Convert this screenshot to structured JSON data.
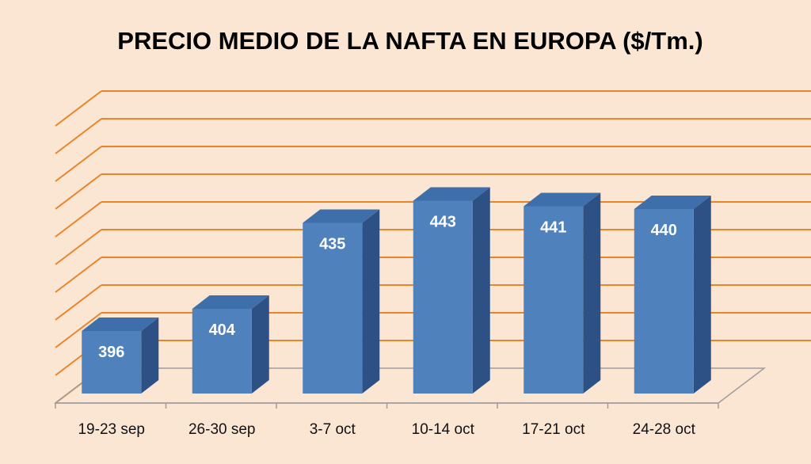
{
  "chart_data": {
    "type": "bar",
    "title": "PRECIO MEDIO DE LA NAFTA EN EUROPA ($/Tm.)",
    "categories": [
      "19-23 sep",
      "26-30 sep",
      "3-7 oct",
      "10-14 oct",
      "17-21 oct",
      "24-28 oct"
    ],
    "values": [
      396,
      404,
      435,
      443,
      441,
      440
    ],
    "data_labels": [
      "396",
      "404",
      "435",
      "443",
      "441",
      "440"
    ],
    "xlabel": "",
    "ylabel": "",
    "ylim": [
      370,
      470
    ],
    "ytick_step": 10,
    "y_tick_labels_shown": false,
    "grid": true,
    "legend": "none",
    "style": "3d-column"
  },
  "colors": {
    "background": "#fbe5d3",
    "gridline": "#e8852a",
    "bar_front": "#4f81bd",
    "bar_top": "#3f6faa",
    "bar_side": "#2e5185",
    "floor": "#9e9e9e"
  }
}
